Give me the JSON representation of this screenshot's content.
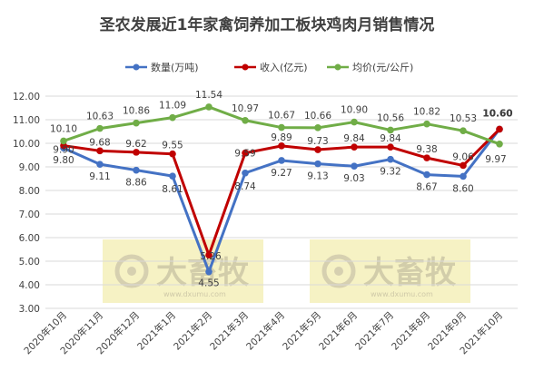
{
  "chart_data": {
    "type": "line",
    "title": "圣农发展近1年家禽饲养加工板块鸡肉月销售情况",
    "categories": [
      "2020年10月",
      "2020年11月",
      "2020年12月",
      "2021年1月",
      "2021年2月",
      "2021年3月",
      "2021年4月",
      "2021年5月",
      "2021年6月",
      "2021年7月",
      "2021年8月",
      "2021年9月",
      "2021年10月"
    ],
    "series": [
      {
        "name": "数量(万吨)",
        "color": "#4472c4",
        "values": [
          9.8,
          9.11,
          8.86,
          8.61,
          4.55,
          8.74,
          9.27,
          9.13,
          9.03,
          9.32,
          8.67,
          8.6,
          10.6
        ],
        "labels": [
          "9.80",
          "9.11",
          "8.86",
          "8.61",
          "4.55",
          "8.74",
          "9.27",
          "9.13",
          "9.03",
          "9.32",
          "8.67",
          "8.60",
          "10.60"
        ]
      },
      {
        "name": "收入(亿元)",
        "color": "#c00000",
        "values": [
          9.9,
          9.68,
          9.62,
          9.55,
          5.26,
          9.59,
          9.89,
          9.73,
          9.84,
          9.84,
          9.38,
          9.06,
          10.6
        ],
        "labels": [
          "9.90",
          "9.68",
          "9.62",
          "9.55",
          "5.26",
          "9.59",
          "9.89",
          "9.73",
          "9.84",
          "9.84",
          "9.38",
          "9.06",
          "10.60"
        ]
      },
      {
        "name": "均价(元/公斤)",
        "color": "#70ad47",
        "values": [
          10.1,
          10.63,
          10.86,
          11.09,
          11.54,
          10.97,
          10.67,
          10.66,
          10.9,
          10.56,
          10.82,
          10.53,
          9.97
        ],
        "labels": [
          "10.10",
          "10.63",
          "10.86",
          "11.09",
          "11.54",
          "10.97",
          "10.67",
          "10.66",
          "10.90",
          "10.56",
          "10.82",
          "10.53",
          "9.97"
        ]
      }
    ],
    "yticks": [
      "3.00",
      "4.00",
      "5.00",
      "6.00",
      "7.00",
      "8.00",
      "9.00",
      "10.00",
      "11.00",
      "12.00"
    ],
    "ylim": [
      3,
      12
    ],
    "grid": true,
    "legend": "top"
  },
  "watermarks": [
    {
      "text": "大畜牧",
      "url": "www.dxumu.com"
    },
    {
      "text": "大畜牧",
      "url": "www.dxumu.com"
    }
  ]
}
